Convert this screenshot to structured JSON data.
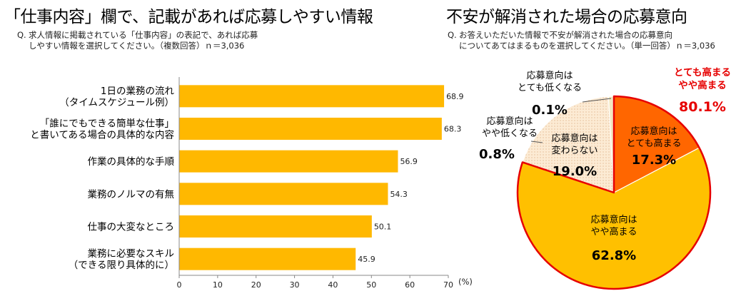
{
  "bar_section": {
    "title": "「仕事内容」欄で、記載があれば応募しやすい情報",
    "q_mark": "Q.",
    "q_line1": "求人情報に掲載されている「仕事内容」の表記で、あれば応募",
    "q_line2": "しやすい情報を選択してください。（複数回答）ｎ＝3,036"
  },
  "pie_section": {
    "title": "不安が解消された場合の応募意向",
    "q_mark": "Q.",
    "q_line1": "お答えいただいた情報で不安が解消された場合の応募意向",
    "q_line2": "についてあてはまるものを選択してください。（単一回答）ｎ＝3,036",
    "highlight_line1": "とても高まる",
    "highlight_line2": "やや高まる",
    "highlight_value": "80.1%"
  },
  "chart_data": [
    {
      "type": "bar",
      "orientation": "horizontal",
      "categories": [
        [
          "1日の業務の流れ",
          "（タイムスケジュール例）"
        ],
        [
          "「誰にでもできる簡単な仕事」",
          "と書いてある場合の具体的な内容"
        ],
        [
          "作業の具体的な手順"
        ],
        [
          "業務のノルマの有無"
        ],
        [
          "仕事の大変なところ"
        ],
        [
          "業務に必要なスキル",
          "（できる限り具体的に）"
        ]
      ],
      "values": [
        68.9,
        68.3,
        56.9,
        54.3,
        50.1,
        45.9
      ],
      "value_labels": [
        "68.9",
        "68.3",
        "56.9",
        "54.3",
        "50.1",
        "45.9"
      ],
      "x_ticks": [
        "0",
        "10",
        "20",
        "30",
        "40",
        "50",
        "60",
        "70"
      ],
      "xlim": [
        0,
        70
      ],
      "unit_label": "(%)",
      "bar_color": "#FFB800",
      "grid": false
    },
    {
      "type": "pie",
      "slices": [
        {
          "lines": [
            "応募意向は",
            "とても高まる"
          ],
          "value": 17.3,
          "value_label": "17.3%",
          "color": "#FF6600"
        },
        {
          "lines": [
            "応募意向は",
            "やや高まる"
          ],
          "value": 62.8,
          "value_label": "62.8%",
          "color": "#FFC000"
        },
        {
          "lines": [
            "応募意向は",
            "変わらない"
          ],
          "value": 19.0,
          "value_label": "19.0%",
          "color": "#FCEBD4"
        },
        {
          "lines": [
            "応募意向は",
            "やや低くなる"
          ],
          "value": 0.8,
          "value_label": "0.8%",
          "color": "#F3E8C0"
        },
        {
          "lines": [
            "応募意向は",
            "とても低くなる"
          ],
          "value": 0.1,
          "value_label": "0.1%",
          "color": "#8E9CC8"
        }
      ],
      "highlight_color": "#E60000"
    }
  ]
}
